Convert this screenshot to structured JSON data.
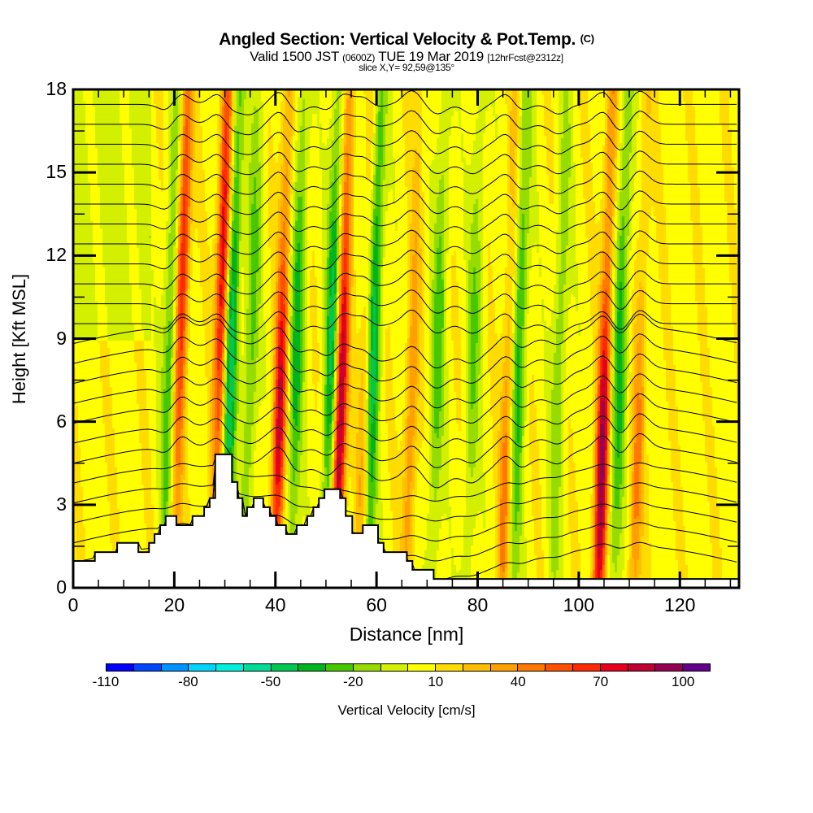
{
  "title": {
    "main": "Angled Section: Vertical Velocity & Pot.Temp.",
    "main_suffix": "(C)",
    "valid_prefix": "Valid 1500 JST",
    "valid_utc": "(0600Z)",
    "valid_date": "TUE 19 Mar 2019",
    "forecast": "[12hrFcst@2312z]",
    "slice": "slice X,Y= 92,59@135°"
  },
  "chart_data": {
    "type": "heatmap",
    "title": "Angled Section: Vertical Velocity & Pot.Temp.",
    "xlabel": "Distance [nm]",
    "ylabel": "Height [Kft MSL]",
    "xlim": [
      0,
      131.7
    ],
    "ylim": [
      0,
      18
    ],
    "x_ticks": [
      0,
      20,
      40,
      60,
      80,
      100,
      120
    ],
    "x_tick_labels": [
      "0",
      "20",
      "40",
      "60",
      "80",
      "100",
      "120"
    ],
    "x_minor_step": 5,
    "y_ticks": [
      0,
      3,
      6,
      9,
      12,
      15,
      18
    ],
    "y_tick_labels": [
      "0",
      "3",
      "6",
      "9",
      "12",
      "15",
      "18"
    ],
    "y_minor_step": 1.5,
    "colorbar": {
      "label": "Vertical Velocity [cm/s]",
      "levels": [
        -110,
        -100,
        -90,
        -80,
        -70,
        -60,
        -50,
        -40,
        -30,
        -20,
        -10,
        0,
        10,
        20,
        30,
        40,
        50,
        60,
        70,
        80,
        90,
        100,
        110
      ],
      "tick_values": [
        -110,
        -80,
        -50,
        -20,
        10,
        40,
        70,
        100
      ],
      "tick_labels": [
        "-110",
        "-80",
        "-50",
        "-20",
        "10",
        "40",
        "70",
        "100"
      ],
      "colors": [
        "#0000ff",
        "#0046ff",
        "#0092ff",
        "#00d4ff",
        "#00f0dc",
        "#00dc96",
        "#00c850",
        "#00b41e",
        "#46c800",
        "#96dc00",
        "#d2f000",
        "#ffff00",
        "#ffdc00",
        "#ffbe00",
        "#ffa000",
        "#ff7800",
        "#ff5000",
        "#ff2800",
        "#e6001e",
        "#be0032",
        "#960050",
        "#64008c"
      ]
    },
    "contour_field": "Potential temperature (C)",
    "updraft_columns_nm": [
      21,
      29,
      41,
      53,
      58,
      67,
      86,
      105,
      112
    ],
    "downdraft_columns_nm": [
      19,
      31,
      35,
      44,
      51,
      59,
      72,
      79,
      88,
      96,
      108
    ],
    "terrain_kft": [
      [
        0,
        0.97
      ],
      [
        4.3,
        0.97
      ],
      [
        4.3,
        1.29
      ],
      [
        8.7,
        1.29
      ],
      [
        8.7,
        1.62
      ],
      [
        12.9,
        1.62
      ],
      [
        12.9,
        1.29
      ],
      [
        15.0,
        1.29
      ],
      [
        15.0,
        1.62
      ],
      [
        16.1,
        1.62
      ],
      [
        16.1,
        1.94
      ],
      [
        17.2,
        1.94
      ],
      [
        17.2,
        2.26
      ],
      [
        18.3,
        2.26
      ],
      [
        18.3,
        2.59
      ],
      [
        20.4,
        2.59
      ],
      [
        20.4,
        2.26
      ],
      [
        23.6,
        2.26
      ],
      [
        23.6,
        2.59
      ],
      [
        25.9,
        2.59
      ],
      [
        25.9,
        2.91
      ],
      [
        27.0,
        2.91
      ],
      [
        27.0,
        3.24
      ],
      [
        28.1,
        3.24
      ],
      [
        28.1,
        4.82
      ],
      [
        31.4,
        4.82
      ],
      [
        31.4,
        3.82
      ],
      [
        32.5,
        3.82
      ],
      [
        32.5,
        3.24
      ],
      [
        33.5,
        3.24
      ],
      [
        33.5,
        2.59
      ],
      [
        34.4,
        2.59
      ],
      [
        34.4,
        2.91
      ],
      [
        35.7,
        2.91
      ],
      [
        35.7,
        3.24
      ],
      [
        37.6,
        3.24
      ],
      [
        37.6,
        2.91
      ],
      [
        38.9,
        2.91
      ],
      [
        38.9,
        2.59
      ],
      [
        40.1,
        2.59
      ],
      [
        40.1,
        2.26
      ],
      [
        42.1,
        2.26
      ],
      [
        42.1,
        1.94
      ],
      [
        44.2,
        1.94
      ],
      [
        44.2,
        2.26
      ],
      [
        46.3,
        2.26
      ],
      [
        46.3,
        2.59
      ],
      [
        47.5,
        2.59
      ],
      [
        47.5,
        2.91
      ],
      [
        48.6,
        2.91
      ],
      [
        48.6,
        3.24
      ],
      [
        49.7,
        3.24
      ],
      [
        49.7,
        3.56
      ],
      [
        52.8,
        3.56
      ],
      [
        52.8,
        3.24
      ],
      [
        53.9,
        3.24
      ],
      [
        53.9,
        2.59
      ],
      [
        55.2,
        2.59
      ],
      [
        55.2,
        1.97
      ],
      [
        57.3,
        1.97
      ],
      [
        57.3,
        2.26
      ],
      [
        60.3,
        2.26
      ],
      [
        60.3,
        1.62
      ],
      [
        61.4,
        1.62
      ],
      [
        61.4,
        1.29
      ],
      [
        66.0,
        1.29
      ],
      [
        66.0,
        0.97
      ],
      [
        67.1,
        0.97
      ],
      [
        67.1,
        0.65
      ],
      [
        71.3,
        0.65
      ],
      [
        71.3,
        0.32
      ],
      [
        131.7,
        0.32
      ]
    ]
  }
}
